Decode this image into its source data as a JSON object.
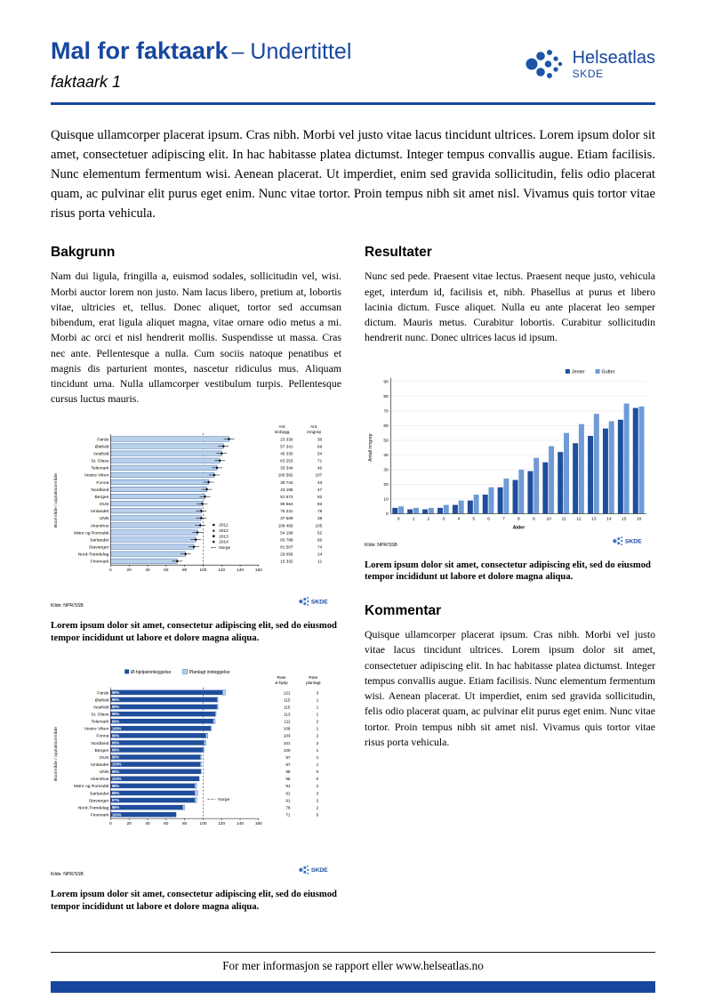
{
  "header": {
    "title": "Mal for faktaark",
    "subtitle": "– Undertittel",
    "doc_label": "faktaark 1",
    "logo_name": "Helseatlas",
    "logo_org": "SKDE"
  },
  "intro": "Quisque ullamcorper placerat ipsum. Cras nibh. Morbi vel justo vitae lacus tincidunt ultrices. Lorem ipsum dolor sit amet, consectetuer adipiscing elit. In hac habitasse platea dictumst. Integer tempus convallis augue. Etiam facilisis. Nunc elementum fermentum wisi. Aenean placerat. Ut imperdiet, enim sed gravida sollicitudin, felis odio placerat quam, ac pulvinar elit purus eget enim. Nunc vitae tortor. Proin tempus nibh sit amet nisl. Vivamus quis tortor vitae risus porta vehicula.",
  "sections": {
    "bakgrunn": {
      "heading": "Bakgrunn",
      "body": "Nam dui ligula, fringilla a, euismod sodales, sollicitudin vel, wisi. Morbi auctor lorem non justo. Nam lacus libero, pretium at, lobortis vitae, ultricies et, tellus. Donec aliquet, tortor sed accumsan bibendum, erat ligula aliquet magna, vitae ornare odio metus a mi. Morbi ac orci et nisl hendrerit mollis. Suspendisse ut massa. Cras nec ante. Pellentesque a nulla. Cum sociis natoque penatibus et magnis dis parturient montes, nascetur ridiculus mus. Aliquam tincidunt urna. Nulla ullamcorper vestibulum turpis. Pellentesque cursus luctus mauris."
    },
    "resultater": {
      "heading": "Resultater",
      "body": "Nunc sed pede. Praesent vitae lectus. Praesent neque justo, vehicula eget, interdum id, facilisis et, nibh. Phasellus at purus et libero lacinia dictum. Fusce aliquet. Nulla eu ante placerat leo semper dictum. Mauris metus. Curabitur lobortis. Curabitur sollicitudin hendrerit nunc. Donec ultrices lacus id ipsum."
    },
    "kommentar": {
      "heading": "Kommentar",
      "body": "Quisque ullamcorper placerat ipsum. Cras nibh. Morbi vel justo vitae lacus tincidunt ultrices. Lorem ipsum dolor sit amet, consectetuer adipiscing elit. In hac habitasse platea dictumst. Integer tempus convallis augue. Etiam facilisis. Nunc elementum fermentum wisi. Aenean placerat. Ut imperdiet, enim sed gravida sollicitudin, felis odio placerat quam, ac pulvinar elit purus eget enim. Nunc vitae tortor. Proin tempus nibh sit amet nisl. Vivamus quis tortor vitae risus porta vehicula."
    }
  },
  "captions": {
    "chart1": "Lorem ipsum dolor sit amet, consectetur adipiscing elit, sed do eiusmod tempor incididunt ut labore et dolore magna aliqua.",
    "chart2": "Lorem ipsum dolor sit amet, consectetur adipiscing elit, sed do eiusmod tempor incididunt ut labore et dolore magna aliqua.",
    "chart3": "Lorem ipsum dolor sit amet, consectetur adipiscing elit, sed do eiusmod tempor incididunt ut labore et dolore magna aliqua."
  },
  "footer": {
    "text": "For mer informasjon se rapport eller www.helseatlas.no"
  },
  "colors": {
    "primary": "#17479e",
    "bar_dark": "#1f4e9c",
    "bar_light": "#b9d0ea",
    "bar_light_stroke": "#2a5ba8",
    "bar_medium": "#6f9bd6",
    "logo_dot": "#1d55a8",
    "skde_dot": "#3d77c2"
  },
  "chart_data": [
    {
      "id": "chart1",
      "type": "bar",
      "orientation": "horizontal",
      "ylabel": "Boområde / opptaksområde",
      "categories": [
        "Førde",
        "Østfold",
        "Vestfold",
        "St. Olavs",
        "Telemark",
        "Vestre Viken",
        "Fonna",
        "Nordland",
        "Bergen",
        "OUS",
        "Innlandet",
        "UNN",
        "Akershus",
        "Møre og Romsdal",
        "Sørlandet",
        "Stavanger",
        "Nord-Trøndelag",
        "Finnmark"
      ],
      "values": [
        128,
        122,
        120,
        118,
        115,
        112,
        106,
        104,
        102,
        99,
        98,
        98,
        97,
        94,
        92,
        90,
        81,
        72
      ],
      "xlim": [
        0,
        160
      ],
      "xticks": [
        0,
        20,
        40,
        60,
        80,
        100,
        120,
        140,
        160
      ],
      "ref_line": 100,
      "col_headers": [
        "Ant. innbygg.",
        "Ant. inngrep"
      ],
      "ant_innbygg": [
        "23 330",
        "57 341",
        "45 330",
        "63 253",
        "33 344",
        "100 582",
        "39 744",
        "43 186",
        "91 673",
        "95 564",
        "75 231",
        "37 609",
        "108 469",
        "54 199",
        "83 788",
        "81 507",
        "29 058",
        "15 332"
      ],
      "ant_inngrep": [
        "30",
        "69",
        "54",
        "71",
        "40",
        "107",
        "43",
        "47",
        "92",
        "82",
        "78",
        "38",
        "105",
        "52",
        "60",
        "74",
        "24",
        "11"
      ],
      "legend": [
        "2011",
        "2012",
        "2013",
        "2014",
        "Norge"
      ],
      "source": "Kilde: NPR/SSB"
    },
    {
      "id": "chart2",
      "type": "bar",
      "orientation": "horizontal",
      "stacked": true,
      "ylabel": "Boområde / opptaksområde",
      "categories": [
        "Førde",
        "Østfold",
        "Vestfold",
        "St. Olavs",
        "Telemark",
        "Vestre Viken",
        "Fonna",
        "Nordland",
        "Bergen",
        "OUS",
        "Innlandet",
        "UNN",
        "Akershus",
        "Møre og Romsdal",
        "Sørlandet",
        "Stavanger",
        "Nord-Trøndelag",
        "Finnmark"
      ],
      "series": [
        {
          "name": "Ø-hjelpsinnleggelse",
          "values": [
            121,
            115,
            115,
            113,
            111,
            108,
            103,
            101,
            100,
            97,
            97,
            98,
            96,
            91,
            91,
            91,
            78,
            71
          ]
        },
        {
          "name": "Planlagt innleggelse",
          "values": [
            3,
            1,
            1,
            1,
            2,
            1,
            2,
            2,
            1,
            1,
            1,
            0,
            0,
            2,
            3,
            2,
            2,
            0
          ]
        }
      ],
      "bar_labels": [
        "98%",
        "99%",
        "99%",
        "99%",
        "99%",
        "100%",
        "99%",
        "99%",
        "99%",
        "99%",
        "100%",
        "99%",
        "100%",
        "98%",
        "99%",
        "97%",
        "98%",
        "100%"
      ],
      "col_headers": [
        "Rate ø-hjelp",
        "Rate planlagt"
      ],
      "xlim": [
        0,
        160
      ],
      "xticks": [
        0,
        20,
        40,
        60,
        80,
        100,
        120,
        140,
        160
      ],
      "ref_line": 100,
      "norge_label": "Norge",
      "source": "Kilde: NPR/SSB"
    },
    {
      "id": "chart3",
      "type": "bar",
      "orientation": "vertical",
      "xlabel": "Alder",
      "ylabel": "Antall inngrep",
      "categories": [
        "0",
        "1",
        "2",
        "3",
        "4",
        "5",
        "6",
        "7",
        "8",
        "9",
        "10",
        "11",
        "12",
        "13",
        "14",
        "15",
        "16"
      ],
      "series": [
        {
          "name": "Jenter",
          "values": [
            4,
            3,
            3,
            4,
            6,
            9,
            13,
            18,
            23,
            29,
            35,
            42,
            48,
            53,
            58,
            64,
            72
          ]
        },
        {
          "name": "Gutter",
          "values": [
            5,
            4,
            4,
            6,
            9,
            13,
            18,
            24,
            30,
            38,
            46,
            55,
            61,
            68,
            63,
            75,
            73
          ]
        }
      ],
      "ylim": [
        0,
        90
      ],
      "ytick_step": 10,
      "source": "Kilde: NPR/SSB"
    }
  ]
}
